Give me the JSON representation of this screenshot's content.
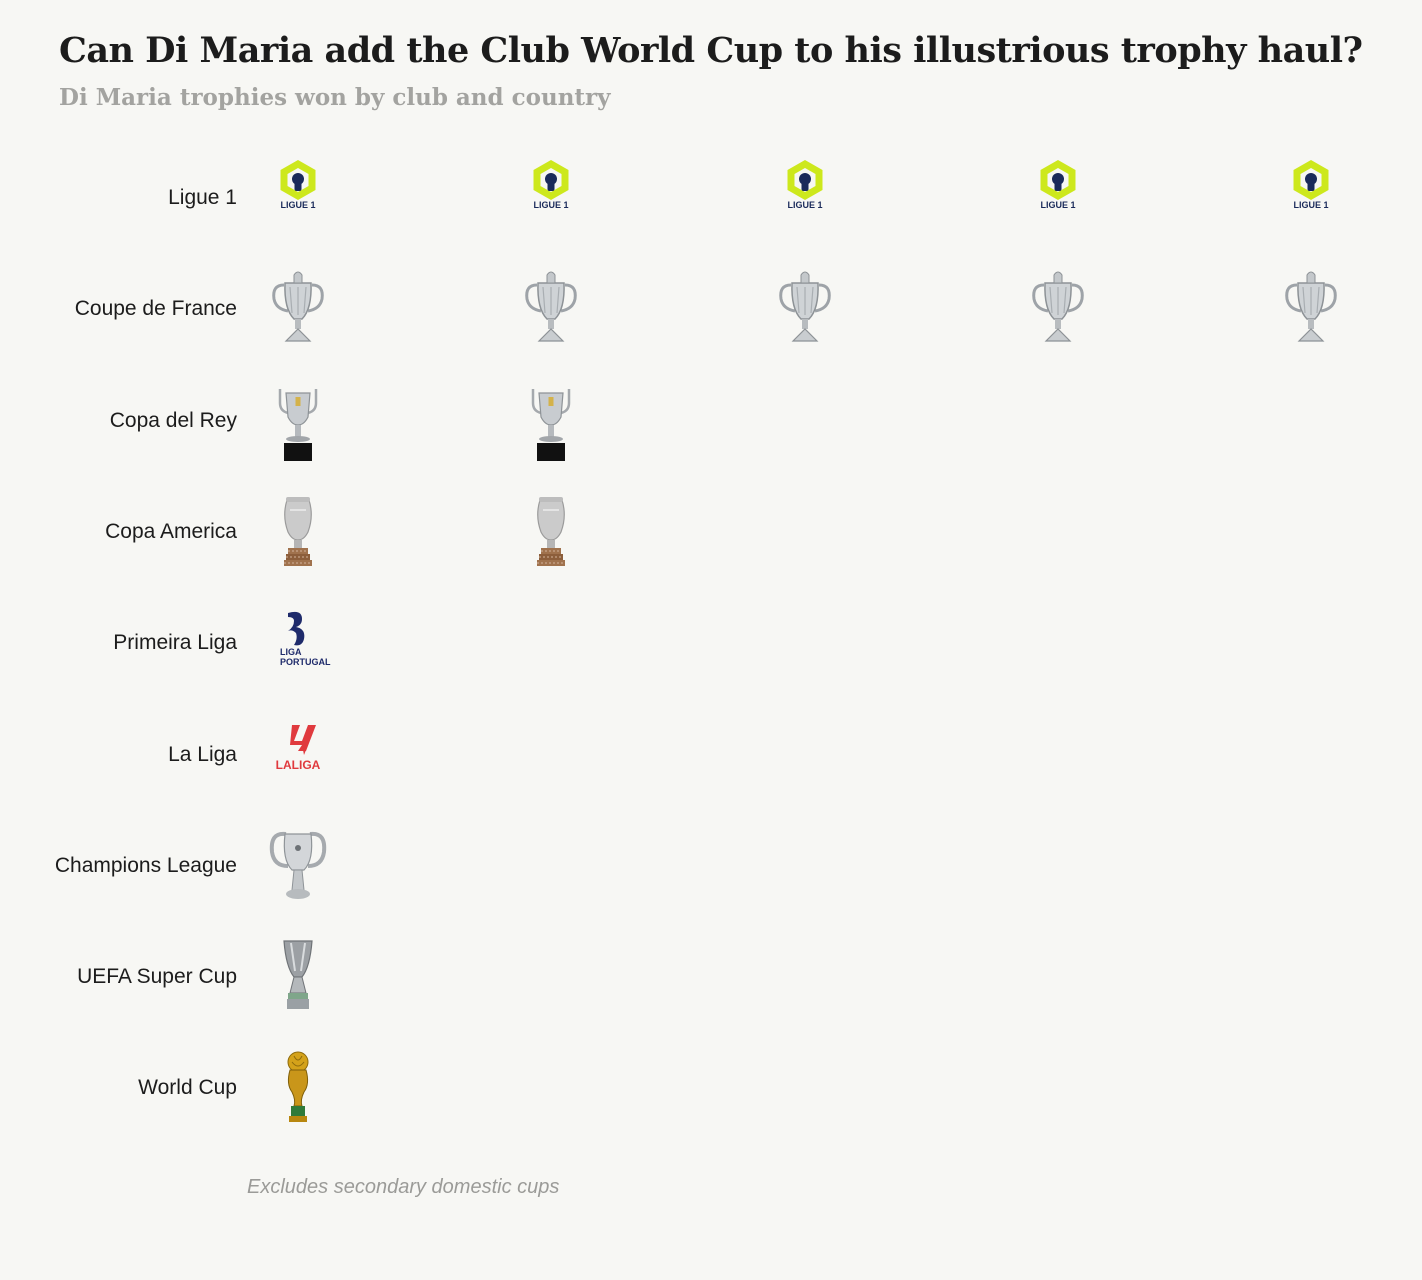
{
  "title": "Can Di Maria add the Club World Cup to his illustrious trophy haul?",
  "subtitle": "Di Maria trophies won by club and country",
  "note": "Excludes secondary domestic cups",
  "chart_data": {
    "type": "table",
    "categories": [
      "Ligue 1",
      "Coupe de France",
      "Copa del Rey",
      "Copa America",
      "Primeira Liga",
      "La Liga",
      "Champions League",
      "UEFA Super Cup",
      "World Cup"
    ],
    "values": [
      5,
      5,
      2,
      2,
      1,
      1,
      1,
      1,
      1
    ],
    "icons": [
      "ligue1-logo",
      "coupe-de-france-trophy",
      "copa-del-rey-trophy",
      "copa-america-trophy",
      "liga-portugal-logo",
      "laliga-logo",
      "champions-league-trophy",
      "uefa-super-cup-trophy",
      "world-cup-trophy"
    ],
    "icon_text": {
      "ligue1-logo": "LIGUE 1",
      "liga-portugal-logo": [
        "LIGA",
        "PORTUGAL"
      ],
      "laliga-logo": "LALIGA"
    }
  }
}
